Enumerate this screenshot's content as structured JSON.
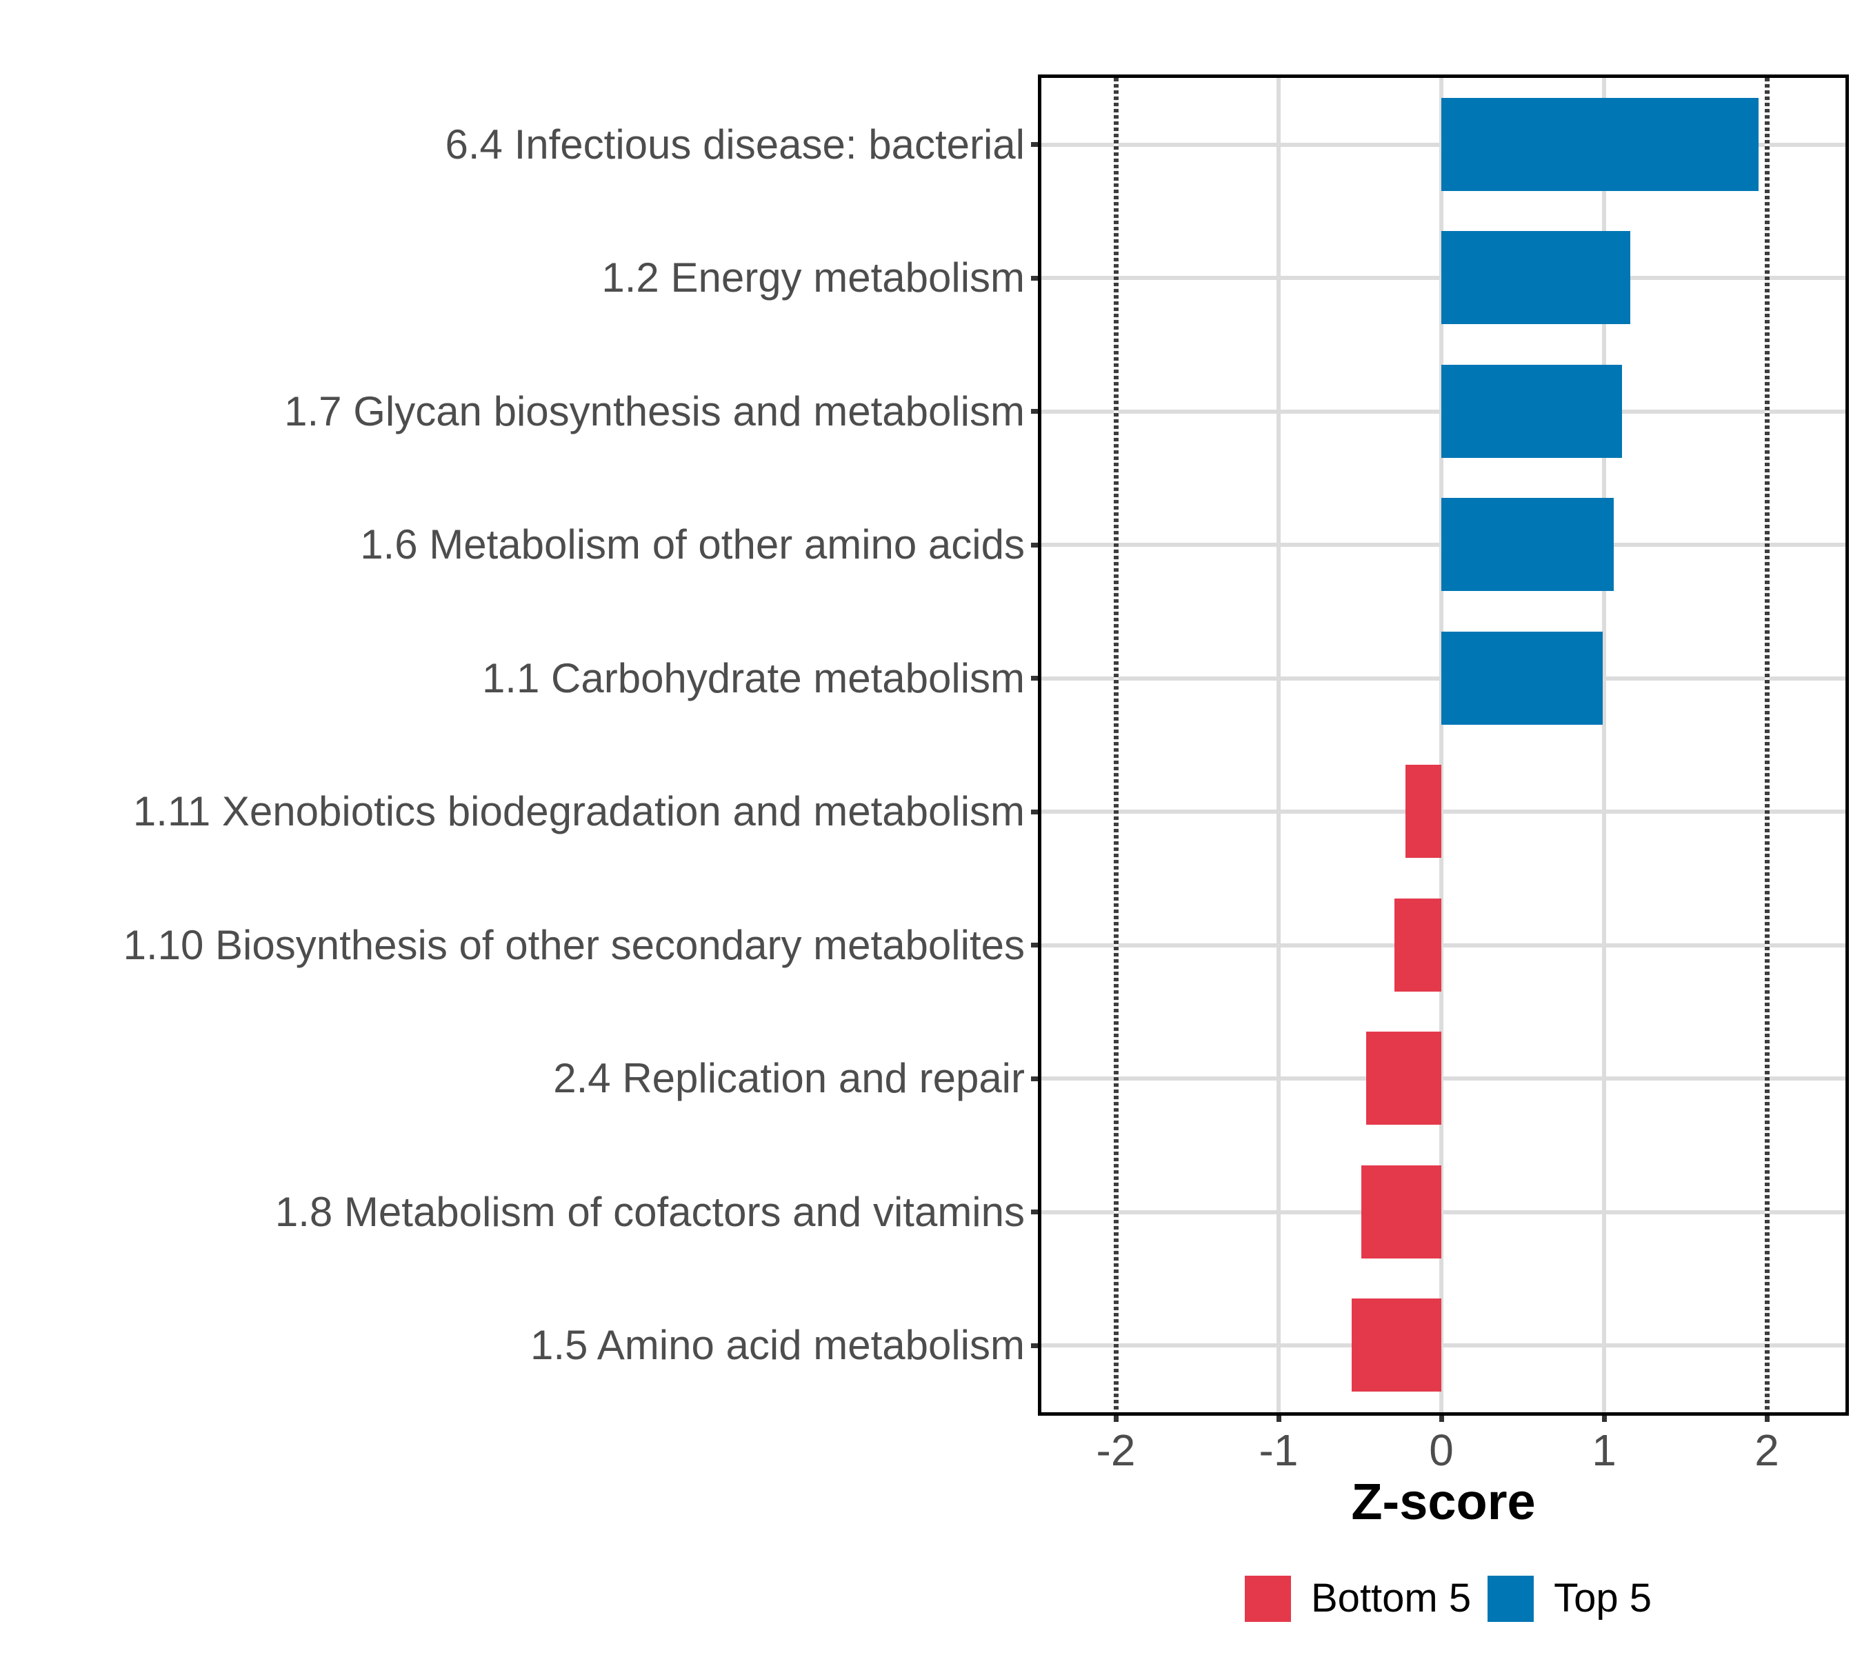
{
  "chart_data": {
    "type": "bar",
    "orientation": "horizontal",
    "xlabel": "Z-score",
    "categories": [
      "6.4 Infectious disease: bacterial",
      "1.2 Energy metabolism",
      "1.7 Glycan biosynthesis and metabolism",
      "1.6 Metabolism of other amino acids",
      "1.1 Carbohydrate metabolism",
      "1.11 Xenobiotics biodegradation and metabolism",
      "1.10 Biosynthesis of other secondary metabolites",
      "2.4 Replication and repair",
      "1.8 Metabolism of cofactors and vitamins",
      "1.5 Amino acid metabolism"
    ],
    "values": [
      1.95,
      1.16,
      1.11,
      1.06,
      0.99,
      -0.22,
      -0.29,
      -0.46,
      -0.49,
      -0.55
    ],
    "groups": [
      "Top 5",
      "Top 5",
      "Top 5",
      "Top 5",
      "Top 5",
      "Bottom 5",
      "Bottom 5",
      "Bottom 5",
      "Bottom 5",
      "Bottom 5"
    ],
    "x_ticks": [
      -2,
      -1,
      0,
      1,
      2
    ],
    "x_tick_labels": [
      "-2",
      "-1",
      "0",
      "1",
      "2"
    ],
    "xlim": [
      -2.46,
      2.48
    ],
    "reference_lines": [
      -2,
      2
    ],
    "grid": "major",
    "legend_position": "bottom",
    "legend": [
      {
        "label": "Bottom 5",
        "color": "#e4394b"
      },
      {
        "label": "Top 5",
        "color": "#0076b4"
      }
    ]
  },
  "colors": {
    "top5_bar": "#0076b4",
    "bottom5_bar": "#e4394b",
    "gridline": "#dcdcdc",
    "reference_line": "#3c3c3c",
    "axis_text": "#4d4d4d",
    "axis_title": "#000000",
    "panel_border": "#000000",
    "background": "#ffffff"
  }
}
